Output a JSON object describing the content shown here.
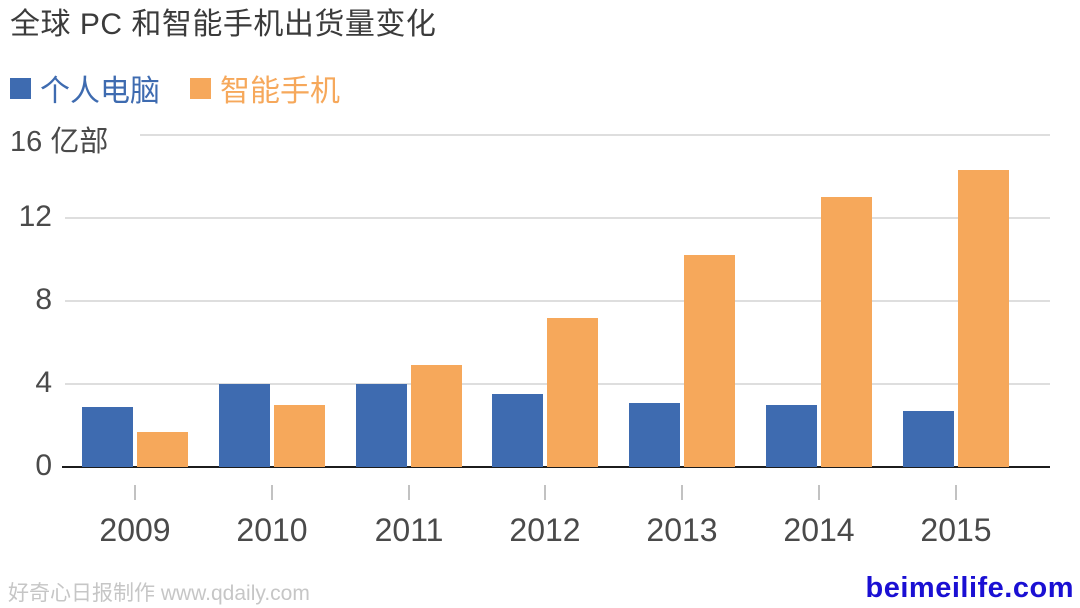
{
  "chart_data": {
    "type": "bar",
    "title": "全球 PC 和智能手机出货量变化",
    "unit_label": "16 亿部",
    "unit": "亿部",
    "categories": [
      "2009",
      "2010",
      "2011",
      "2012",
      "2013",
      "2014",
      "2015"
    ],
    "series": [
      {
        "name": "个人电脑",
        "color": "#3e6bb0",
        "values": [
          2.9,
          4.0,
          4.0,
          3.5,
          3.1,
          3.0,
          2.7
        ]
      },
      {
        "name": "智能手机",
        "color": "#f6a85b",
        "values": [
          1.7,
          3.0,
          4.9,
          7.2,
          10.2,
          13.0,
          14.3
        ]
      }
    ],
    "ylim": [
      0,
      16
    ],
    "yticks": [
      0,
      4,
      8,
      12,
      16
    ],
    "grid": true,
    "legend_position": "top-left",
    "colors": {
      "pc": "#3e6bb0",
      "smartphone": "#f6a85b",
      "gridline": "#dedede",
      "axis_line": "#1c1c1c",
      "tick_text": "#4a4a4a"
    }
  },
  "footer": {
    "credit": "好奇心日报制作 www.qdaily.com",
    "watermark": "beimeilife.com",
    "watermark_color": "#1a0fd3"
  }
}
